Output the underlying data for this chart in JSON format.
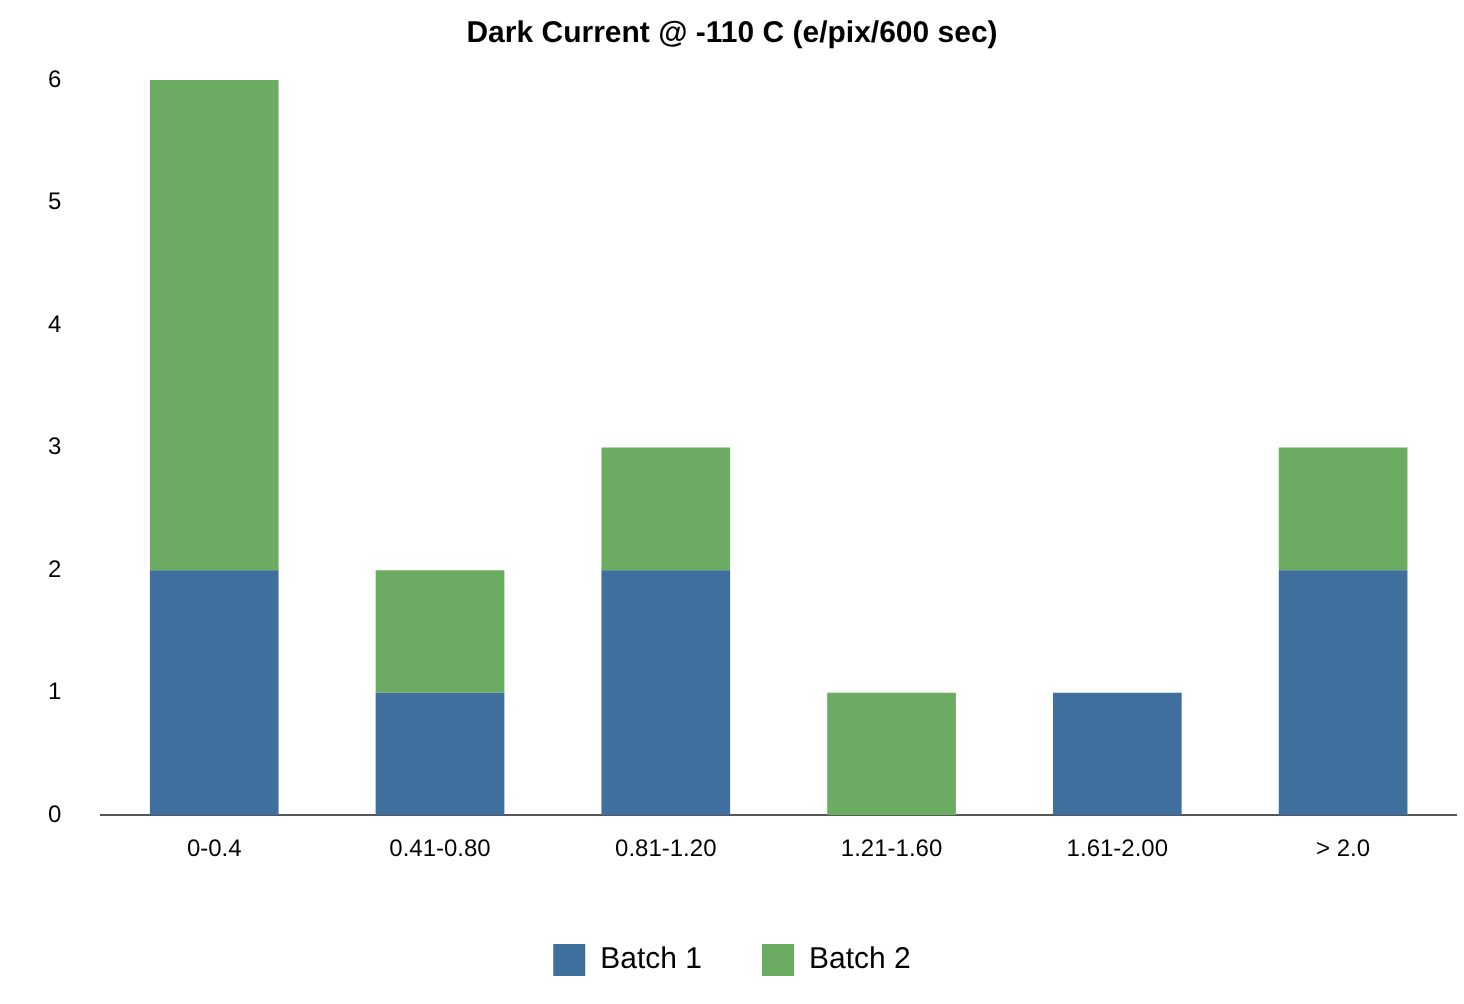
{
  "chart_data": {
    "type": "bar",
    "title": "Dark Current @ -110 C (e/pix/600 sec)",
    "categories": [
      "0-0.4",
      "0.41-0.80",
      "0.81-1.20",
      "1.21-1.60",
      "1.61-2.00",
      "> 2.0"
    ],
    "stacked": true,
    "series": [
      {
        "name": "Batch 1",
        "color": "#3f6f9d",
        "values": [
          2,
          1,
          2,
          0,
          1,
          2
        ]
      },
      {
        "name": "Batch 2",
        "color": "#6cab62",
        "values": [
          4,
          1,
          1,
          1,
          0,
          1
        ]
      }
    ],
    "ylim": [
      0,
      6
    ],
    "yticks": [
      0,
      1,
      2,
      3,
      4,
      5,
      6
    ],
    "grid": false,
    "legend": "bottom"
  }
}
